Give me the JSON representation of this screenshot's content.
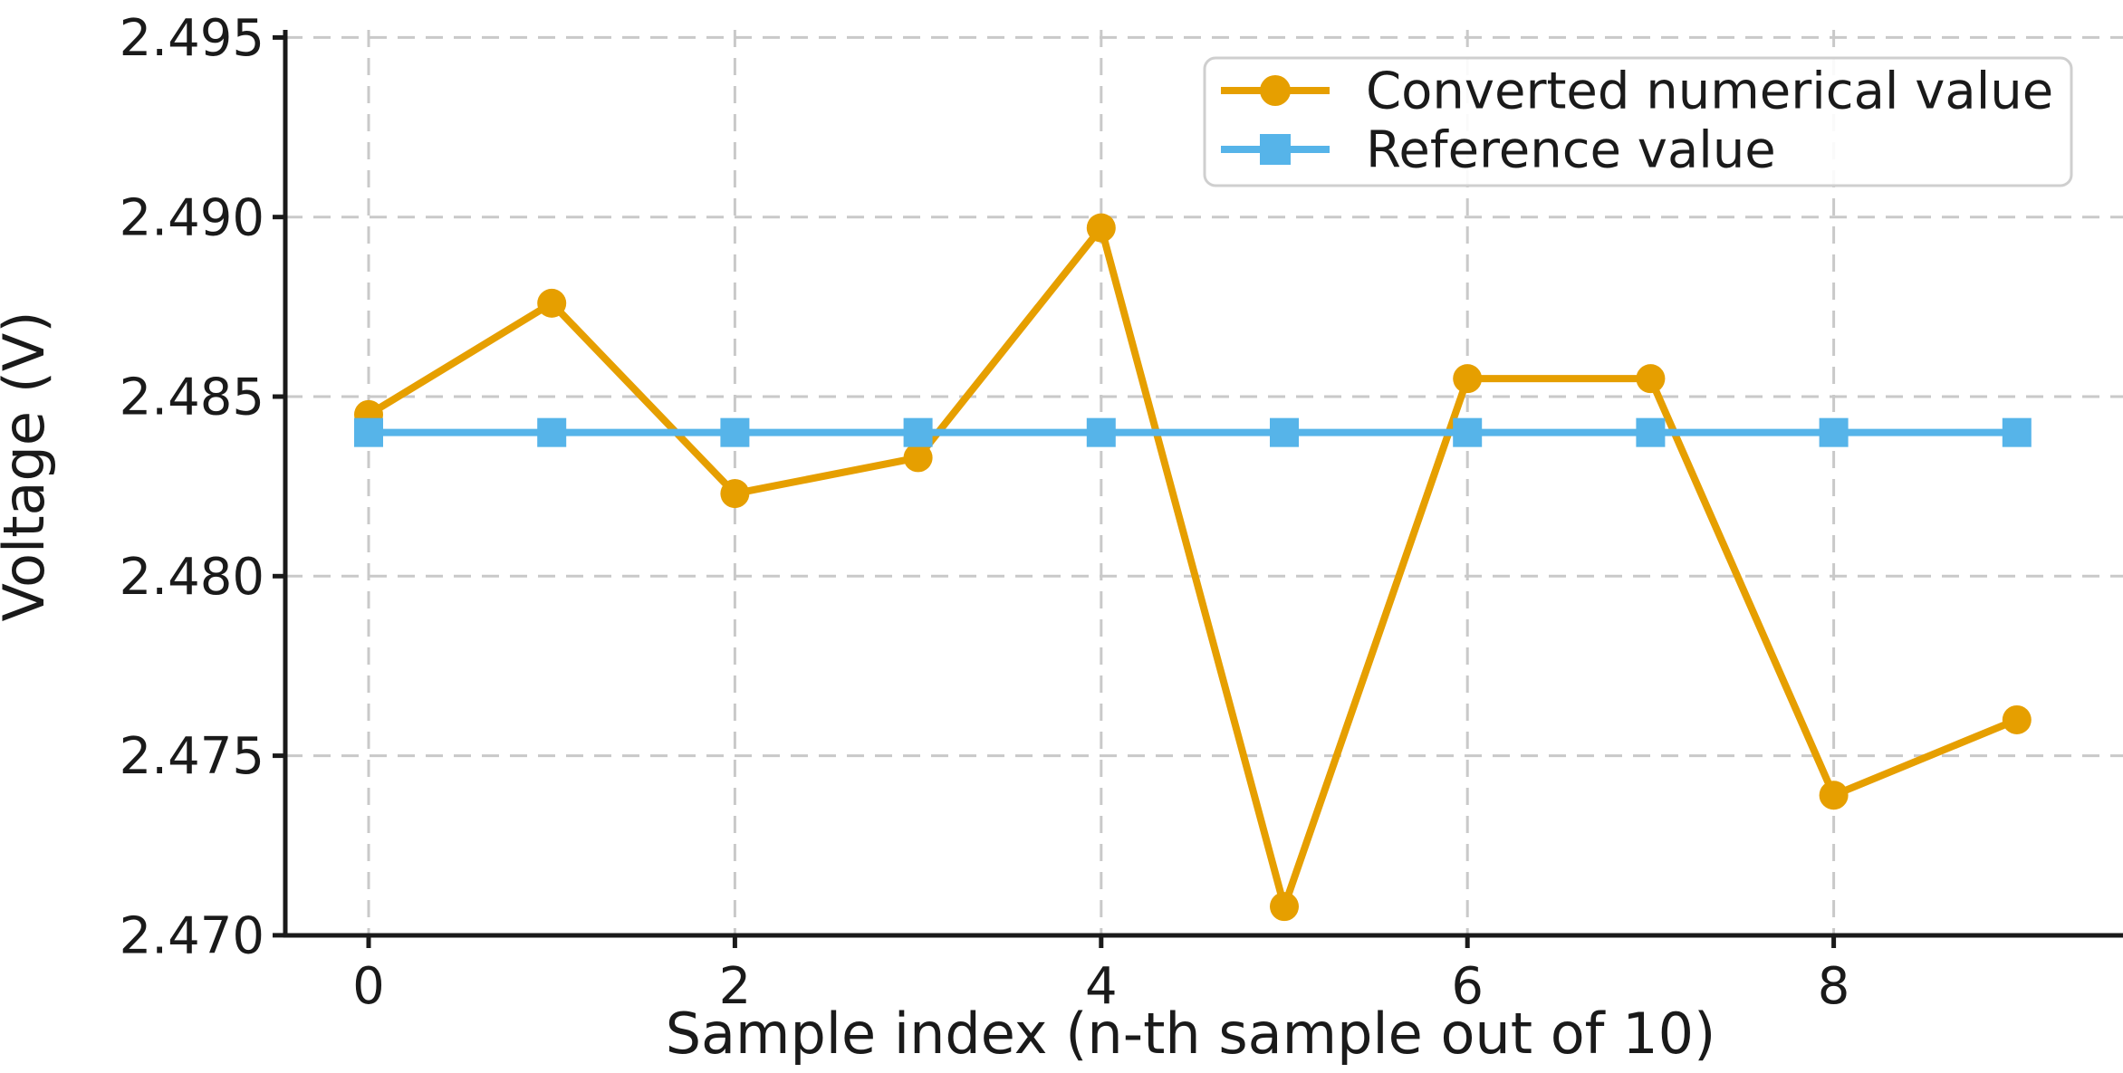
{
  "chart_data": {
    "type": "line",
    "title": "",
    "xlabel": "Sample index (n-th sample out of 10)",
    "ylabel": "Voltage (V)",
    "x": [
      0,
      1,
      2,
      3,
      4,
      5,
      6,
      7,
      8,
      9
    ],
    "series": [
      {
        "name": "Converted numerical value",
        "color": "#E69F00",
        "marker": "circle",
        "values": [
          2.4845,
          2.4876,
          2.4823,
          2.4833,
          2.4897,
          2.4708,
          2.4855,
          2.4855,
          2.4739,
          2.476
        ]
      },
      {
        "name": "Reference value",
        "color": "#56B4E9",
        "marker": "square",
        "values": [
          2.484,
          2.484,
          2.484,
          2.484,
          2.484,
          2.484,
          2.484,
          2.484,
          2.484,
          2.484
        ]
      }
    ],
    "xticks": [
      0,
      2,
      4,
      6,
      8
    ],
    "yticks": [
      2.47,
      2.475,
      2.48,
      2.485,
      2.49,
      2.495
    ],
    "ytick_decimals": 3,
    "xlim": [
      -0.455,
      9.58
    ],
    "ylim": [
      2.4699,
      2.4953
    ],
    "grid": true,
    "grid_style": "dashed",
    "legend_position": "upper right",
    "colors": {
      "grid": "#c9c9c9",
      "spine": "#1a1a1a",
      "text": "#1a1a1a",
      "legend_border": "#cfcfcf",
      "legend_bg": "#ffffff"
    }
  }
}
